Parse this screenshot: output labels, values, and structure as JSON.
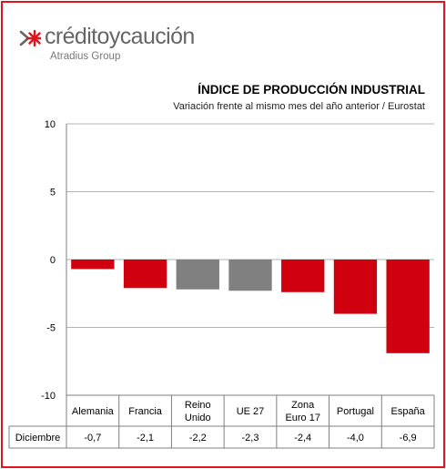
{
  "brand": {
    "name": "créditoycaución",
    "group": "Atradius Group",
    "accent_color": "#e1141e"
  },
  "chart_data": {
    "type": "bar",
    "title": "ÍNDICE DE PRODUCCIÓN INDUSTRIAL",
    "subtitle": "Variación frente al mismo mes del año anterior / Eurostat",
    "categories": [
      [
        "Alemania"
      ],
      [
        "Francia"
      ],
      [
        "Reino",
        "Unido"
      ],
      [
        "UE 27"
      ],
      [
        "Zona",
        "Euro 17"
      ],
      [
        "Portugal"
      ],
      [
        "España"
      ]
    ],
    "series": [
      {
        "name": "Diciembre",
        "values": [
          -0.7,
          -2.1,
          -2.2,
          -2.3,
          -2.4,
          -4.0,
          -6.9
        ],
        "labels": [
          "-0,7",
          "-2,1",
          "-2,2",
          "-2,3",
          "-2,4",
          "-4,0",
          "-6,9"
        ],
        "colors": [
          "#d0000e",
          "#d0000e",
          "#808080",
          "#808080",
          "#d0000e",
          "#d0000e",
          "#d0000e"
        ]
      }
    ],
    "ylim": [
      -10,
      10
    ],
    "yticks": [
      10,
      5,
      0,
      -5,
      -10
    ],
    "grid": true,
    "data_table": true
  }
}
